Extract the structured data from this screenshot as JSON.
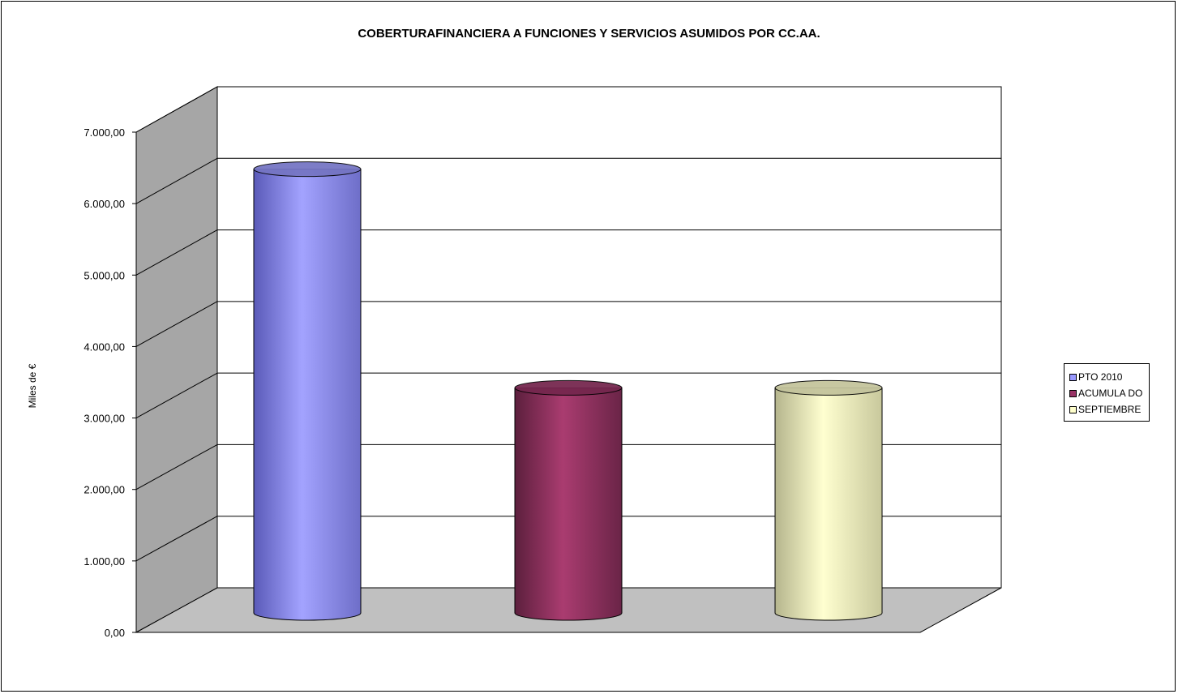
{
  "chart_data": {
    "type": "bar",
    "style": "3d-cylinder",
    "title": "COBERTURAFINANCIERA A FUNCIONES Y SERVICIOS ASUMIDOS POR CC.AA.",
    "ylabel": "Miles de €",
    "ylim": [
      0,
      7000
    ],
    "y_ticks": [
      "0,00",
      "1.000,00",
      "2.000,00",
      "3.000,00",
      "4.000,00",
      "5.000,00",
      "6.000,00",
      "7.000,00"
    ],
    "grid": true,
    "legend_position": "right",
    "series": [
      {
        "name": "PTO  2010",
        "value": 6210,
        "color": "#9999ff"
      },
      {
        "name": "ACUMULA DO",
        "value": 3150,
        "color": "#993366"
      },
      {
        "name": "SEPTIEMBRE",
        "value": 3150,
        "color": "#ffffcc"
      }
    ]
  }
}
